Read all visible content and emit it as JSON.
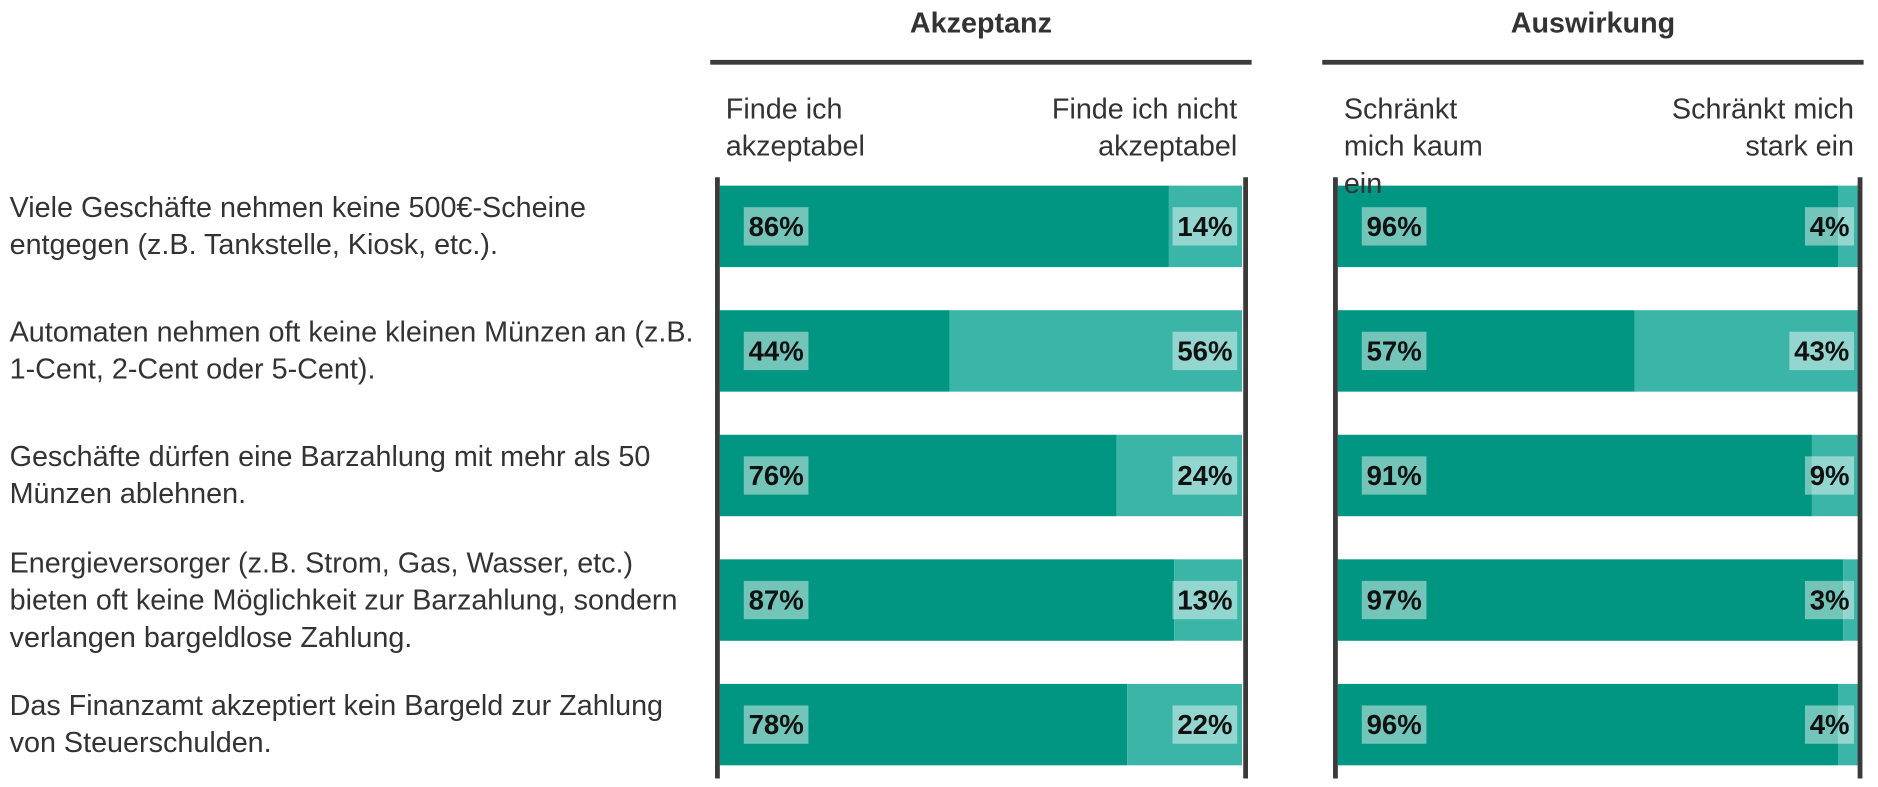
{
  "chart_data": [
    {
      "type": "stacked-bar",
      "title": "Akzeptanz",
      "categories": [
        "Viele Geschäfte nehmen keine 500€-Scheine entgegen (z.B. Tankstelle, Kiosk, etc.).",
        "Automaten nehmen oft keine kleinen Münzen an (z.B. 1-Cent, 2-Cent oder 5-Cent).",
        "Geschäfte dürfen eine Barzahlung mit mehr als 50 Münzen ablehnen.",
        "Energieversorger (z.B. Strom, Gas, Wasser, etc.) bieten oft keine Möglichkeit zur Barzah­lung, sondern verlangen bargeldlose Zahlung.",
        "Das Finanzamt akzeptiert kein Bargeld zur Zahlung von Steuerschulden."
      ],
      "xlim": [
        0,
        100
      ],
      "series": [
        {
          "name": "Finde ich akzeptabel",
          "color": "#009682",
          "values": [
            86,
            44,
            76,
            87,
            78
          ],
          "value_labels": [
            "86%",
            "44%",
            "76%",
            "87%",
            "78%"
          ]
        },
        {
          "name": "Finde ich nicht akzeptabel",
          "color": "#3bb5a8",
          "values": [
            14,
            56,
            24,
            13,
            22
          ],
          "value_labels": [
            "14%",
            "56%",
            "24%",
            "13%",
            "22%"
          ]
        }
      ]
    },
    {
      "type": "stacked-bar",
      "title": "Auswirkung",
      "xlim": [
        0,
        100
      ],
      "series": [
        {
          "name": "Schränkt mich kaum ein",
          "color": "#009682",
          "values": [
            96,
            57,
            91,
            97,
            96
          ],
          "value_labels": [
            "96%",
            "57%",
            "91%",
            "97%",
            "96%"
          ]
        },
        {
          "name": "Schränkt mich stark ein",
          "color": "#3bb5a8",
          "values": [
            4,
            43,
            9,
            3,
            4
          ],
          "value_labels": [
            "4%",
            "43%",
            "9%",
            "3%",
            "4%"
          ]
        }
      ]
    }
  ]
}
